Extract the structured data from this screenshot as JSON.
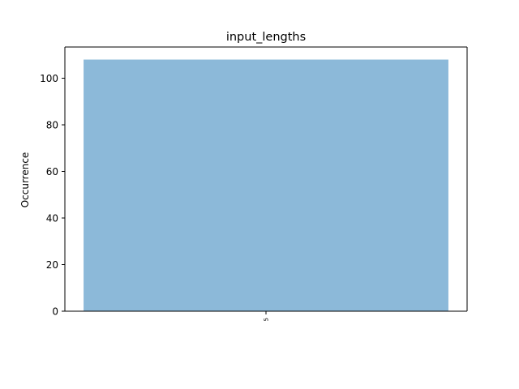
{
  "chart_data": {
    "type": "bar",
    "title": "input_lengths",
    "xlabel": "",
    "ylabel": "Occurrence",
    "categories": [
      "5"
    ],
    "values": [
      108
    ],
    "ylim": [
      0,
      113.4
    ],
    "yticks": [
      0,
      20,
      40,
      60,
      80,
      100
    ],
    "grid": false,
    "colors": {
      "bar": "#8cb9d9",
      "axis": "#000000",
      "background": "#ffffff"
    }
  }
}
